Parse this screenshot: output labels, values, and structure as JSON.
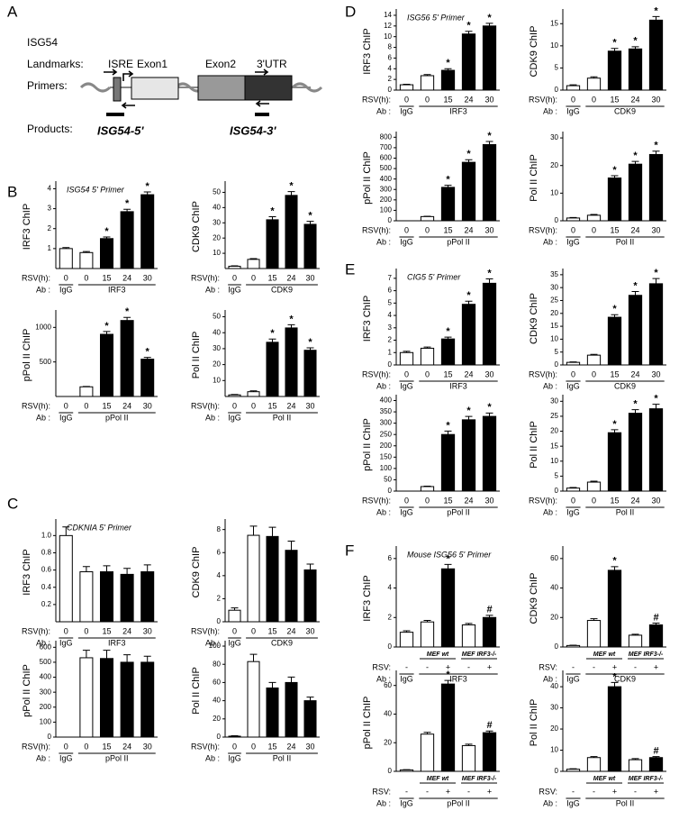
{
  "figure": {
    "panel_labels": [
      "A",
      "B",
      "C",
      "D",
      "E",
      "F"
    ]
  },
  "diagram": {
    "gene": "ISG54",
    "landmarks": "Landmarks:",
    "isre": "ISRE",
    "exon1": "Exon1",
    "exon2": "Exon2",
    "utr": "3'UTR",
    "primers": "Primers:",
    "products": "Products:",
    "product1": "ISG54-5'",
    "product2": "ISG54-3'"
  },
  "chart_data": [
    {
      "type": "bar",
      "title": "ISG54 5' Primer",
      "ylabel": "IRF3 ChIP",
      "row_labels": [
        "RSV(h):",
        "Ab :"
      ],
      "categories": [
        "0",
        "0",
        "15",
        "24",
        "30"
      ],
      "groups": [
        "IgG",
        "IRF3"
      ],
      "values": [
        1.0,
        0.8,
        1.5,
        2.85,
        3.7
      ],
      "errors": [
        0.05,
        0.05,
        0.08,
        0.12,
        0.14
      ],
      "annotations": [
        null,
        null,
        "*",
        "*",
        "*"
      ],
      "colors": [
        "#ffffff",
        "#ffffff",
        "#000000",
        "#000000",
        "#000000"
      ],
      "ylim": [
        0,
        4.2
      ],
      "yticks": [
        1,
        2,
        3,
        4
      ]
    },
    {
      "type": "bar",
      "ylabel": "CDK9 ChIP",
      "row_labels": [
        "RSV(h):",
        "Ab :"
      ],
      "categories": [
        "0",
        "0",
        "15",
        "24",
        "30"
      ],
      "groups": [
        "IgG",
        "CDK9"
      ],
      "values": [
        1.5,
        6,
        32,
        48,
        29
      ],
      "errors": [
        0.3,
        0.5,
        2,
        2.5,
        2
      ],
      "annotations": [
        null,
        null,
        "*",
        "*",
        "*"
      ],
      "colors": [
        "#ffffff",
        "#ffffff",
        "#000000",
        "#000000",
        "#000000"
      ],
      "ylim": [
        0,
        55
      ],
      "yticks": [
        10,
        20,
        30,
        40,
        50
      ]
    },
    {
      "type": "bar",
      "ylabel": "pPol II ChIP",
      "row_labels": [
        "RSV(h):",
        "Ab :"
      ],
      "categories": [
        "0",
        "0",
        "15",
        "24",
        "30"
      ],
      "groups": [
        "IgG",
        "pPol II"
      ],
      "values": [
        0,
        140,
        900,
        1100,
        540
      ],
      "errors": [
        0,
        5,
        40,
        45,
        25
      ],
      "annotations": [
        null,
        null,
        "*",
        "*",
        "*"
      ],
      "colors": [
        "#ffffff",
        "#ffffff",
        "#000000",
        "#000000",
        "#000000"
      ],
      "ylim": [
        0,
        1200
      ],
      "yticks": [
        500,
        1000
      ]
    },
    {
      "type": "bar",
      "ylabel": "Pol II ChIP",
      "row_labels": [
        "RSV(h):",
        "Ab :"
      ],
      "categories": [
        "0",
        "0",
        "15",
        "24",
        "30"
      ],
      "groups": [
        "IgG",
        "Pol II"
      ],
      "values": [
        1,
        3,
        34,
        43,
        29
      ],
      "errors": [
        0.3,
        0.5,
        2,
        2,
        1.5
      ],
      "annotations": [
        null,
        null,
        "*",
        "*",
        "*"
      ],
      "colors": [
        "#ffffff",
        "#ffffff",
        "#000000",
        "#000000",
        "#000000"
      ],
      "ylim": [
        0,
        52
      ],
      "yticks": [
        10,
        20,
        30,
        40,
        50
      ]
    },
    {
      "type": "bar",
      "title": "CDKNIA 5' Primer",
      "ylabel": "IRF3 ChIP",
      "row_labels": [
        "RSV(h):",
        "Ab :"
      ],
      "categories": [
        "0",
        "0",
        "15",
        "24",
        "30"
      ],
      "groups": [
        "IgG",
        "IRF3"
      ],
      "values": [
        1.0,
        0.58,
        0.58,
        0.55,
        0.58
      ],
      "errors": [
        0.1,
        0.06,
        0.07,
        0.07,
        0.08
      ],
      "annotations": [
        null,
        null,
        null,
        null,
        null
      ],
      "colors": [
        "#ffffff",
        "#ffffff",
        "#000000",
        "#000000",
        "#000000"
      ],
      "ylim": [
        0,
        1.15
      ],
      "yticks": [
        0.2,
        0.4,
        0.6,
        0.8,
        {
          "value": 1,
          "label": "1.0"
        }
      ]
    },
    {
      "type": "bar",
      "ylabel": "CDK9 ChIP",
      "row_labels": [
        "RSV(h):",
        "Ab :"
      ],
      "categories": [
        "0",
        "0",
        "15",
        "24",
        "30"
      ],
      "groups": [
        "IgG",
        "CDK9"
      ],
      "values": [
        1.0,
        7.5,
        7.4,
        6.2,
        4.5
      ],
      "errors": [
        0.2,
        0.8,
        0.8,
        0.8,
        0.5
      ],
      "annotations": [
        null,
        null,
        null,
        null,
        null
      ],
      "colors": [
        "#ffffff",
        "#ffffff",
        "#000000",
        "#000000",
        "#000000"
      ],
      "ylim": [
        0,
        8.6
      ],
      "yticks": [
        0,
        2,
        4,
        6,
        8
      ]
    },
    {
      "type": "bar",
      "ylabel": "pPol II ChIP",
      "row_labels": [
        "RSV(h):",
        "Ab :"
      ],
      "categories": [
        "0",
        "0",
        "15",
        "24",
        "30"
      ],
      "groups": [
        "IgG",
        "pPol II"
      ],
      "values": [
        0,
        530,
        525,
        500,
        500
      ],
      "errors": [
        0,
        50,
        55,
        50,
        40
      ],
      "annotations": [
        null,
        null,
        null,
        null,
        null
      ],
      "colors": [
        "#ffffff",
        "#ffffff",
        "#000000",
        "#000000",
        "#000000"
      ],
      "ylim": [
        0,
        620
      ],
      "yticks": [
        0,
        100,
        200,
        300,
        400,
        500,
        600
      ]
    },
    {
      "type": "bar",
      "ylabel": "Pol II ChIP",
      "row_labels": [
        "RSV(h):",
        "Ab :"
      ],
      "categories": [
        "0",
        "0",
        "15",
        "24",
        "30"
      ],
      "groups": [
        "IgG",
        "Pol II"
      ],
      "values": [
        1,
        83,
        54,
        60,
        40
      ],
      "errors": [
        0.5,
        8,
        6,
        6,
        4
      ],
      "annotations": [
        null,
        null,
        null,
        null,
        null
      ],
      "colors": [
        "#ffffff",
        "#ffffff",
        "#000000",
        "#000000",
        "#000000"
      ],
      "ylim": [
        0,
        102
      ],
      "yticks": [
        0,
        20,
        40,
        60,
        80,
        100
      ]
    },
    {
      "type": "bar",
      "title": "ISG56 5' Primer",
      "ylabel": "IRF3 ChIP",
      "row_labels": [
        "RSV(h):",
        "Ab :"
      ],
      "categories": [
        "0",
        "0",
        "15",
        "24",
        "30"
      ],
      "groups": [
        "IgG",
        "IRF3"
      ],
      "values": [
        1,
        2.7,
        3.7,
        10.5,
        12
      ],
      "errors": [
        0.1,
        0.2,
        0.3,
        0.5,
        0.5
      ],
      "annotations": [
        null,
        null,
        "*",
        "*",
        "*"
      ],
      "colors": [
        "#ffffff",
        "#ffffff",
        "#000000",
        "#000000",
        "#000000"
      ],
      "ylim": [
        0,
        14.5
      ],
      "yticks": [
        0,
        2,
        4,
        6,
        8,
        10,
        12,
        14
      ]
    },
    {
      "type": "bar",
      "ylabel": "CDK9 ChIP",
      "row_labels": [
        "RSV(h):",
        "Ab :"
      ],
      "categories": [
        "0",
        "0",
        "15",
        "24",
        "30"
      ],
      "groups": [
        "IgG",
        "CDK9"
      ],
      "values": [
        1,
        2.7,
        8.8,
        9.3,
        15.8
      ],
      "errors": [
        0.2,
        0.3,
        0.6,
        0.5,
        0.8
      ],
      "annotations": [
        null,
        null,
        "*",
        "*",
        "*"
      ],
      "colors": [
        "#ffffff",
        "#ffffff",
        "#000000",
        "#000000",
        "#000000"
      ],
      "ylim": [
        0,
        17.5
      ],
      "yticks": [
        0,
        5,
        10,
        15
      ]
    },
    {
      "type": "bar",
      "ylabel": "pPol II ChIP",
      "row_labels": [
        "RSV(h):",
        "Ab :"
      ],
      "categories": [
        "0",
        "0",
        "15",
        "24",
        "30"
      ],
      "groups": [
        "IgG",
        "pPol II"
      ],
      "values": [
        0,
        40,
        320,
        560,
        730
      ],
      "errors": [
        0,
        3,
        20,
        25,
        30
      ],
      "annotations": [
        null,
        null,
        "*",
        "*",
        "*"
      ],
      "colors": [
        "#ffffff",
        "#ffffff",
        "#000000",
        "#000000",
        "#000000"
      ],
      "ylim": [
        0,
        820
      ],
      "yticks": [
        0,
        100,
        200,
        300,
        400,
        500,
        600,
        700,
        800
      ]
    },
    {
      "type": "bar",
      "ylabel": "Pol II ChIP",
      "row_labels": [
        "RSV(h):",
        "Ab :"
      ],
      "categories": [
        "0",
        "0",
        "15",
        "24",
        "30"
      ],
      "groups": [
        "IgG",
        "Pol II"
      ],
      "values": [
        1,
        2,
        15.5,
        20.5,
        24
      ],
      "errors": [
        0.2,
        0.3,
        0.8,
        1,
        1.2
      ],
      "annotations": [
        null,
        null,
        "*",
        "*",
        "*"
      ],
      "colors": [
        "#ffffff",
        "#ffffff",
        "#000000",
        "#000000",
        "#000000"
      ],
      "ylim": [
        0,
        31
      ],
      "yticks": [
        0,
        10,
        20,
        30
      ]
    },
    {
      "type": "bar",
      "title": "CIG5 5' Primer",
      "ylabel": "IRF3 ChIP",
      "row_labels": [
        "RSV(h):",
        "Ab :"
      ],
      "categories": [
        "0",
        "0",
        "15",
        "24",
        "30"
      ],
      "groups": [
        "IgG",
        "IRF3"
      ],
      "values": [
        1,
        1.35,
        2.1,
        4.9,
        6.6
      ],
      "errors": [
        0.1,
        0.1,
        0.15,
        0.25,
        0.35
      ],
      "annotations": [
        null,
        null,
        "*",
        "*",
        "*"
      ],
      "colors": [
        "#ffffff",
        "#ffffff",
        "#000000",
        "#000000",
        "#000000"
      ],
      "ylim": [
        0,
        7.5
      ],
      "yticks": [
        0,
        1,
        2,
        3,
        4,
        5,
        6,
        7
      ]
    },
    {
      "type": "bar",
      "ylabel": "CDK9 ChIP",
      "row_labels": [
        "RSV(h):",
        "Ab :"
      ],
      "categories": [
        "0",
        "0",
        "15",
        "24",
        "30"
      ],
      "groups": [
        "IgG",
        "CDK9"
      ],
      "values": [
        1,
        3.8,
        18.5,
        27,
        31.5
      ],
      "errors": [
        0.2,
        0.3,
        1,
        1.5,
        2
      ],
      "annotations": [
        null,
        null,
        "*",
        "*",
        "*"
      ],
      "colors": [
        "#ffffff",
        "#ffffff",
        "#000000",
        "#000000",
        "#000000"
      ],
      "ylim": [
        0,
        36
      ],
      "yticks": [
        0,
        5,
        10,
        15,
        20,
        25,
        30,
        35
      ]
    },
    {
      "type": "bar",
      "ylabel": "pPol II ChIP",
      "row_labels": [
        "RSV(h):",
        "Ab :"
      ],
      "categories": [
        "0",
        "0",
        "15",
        "24",
        "30"
      ],
      "groups": [
        "IgG",
        "pPol II"
      ],
      "values": [
        0,
        20,
        250,
        315,
        330
      ],
      "errors": [
        0,
        2,
        15,
        15,
        15
      ],
      "annotations": [
        null,
        null,
        "*",
        "*",
        "*"
      ],
      "colors": [
        "#ffffff",
        "#ffffff",
        "#000000",
        "#000000",
        "#000000"
      ],
      "ylim": [
        0,
        410
      ],
      "yticks": [
        0,
        50,
        100,
        150,
        200,
        250,
        300,
        350,
        400
      ]
    },
    {
      "type": "bar",
      "ylabel": "Pol II ChIP",
      "row_labels": [
        "RSV(h):",
        "Ab :"
      ],
      "categories": [
        "0",
        "0",
        "15",
        "24",
        "30"
      ],
      "groups": [
        "IgG",
        "Pol II"
      ],
      "values": [
        1,
        3,
        19.5,
        26,
        27.5
      ],
      "errors": [
        0.2,
        0.3,
        1,
        1.2,
        1.5
      ],
      "annotations": [
        null,
        null,
        "*",
        "*",
        "*"
      ],
      "colors": [
        "#ffffff",
        "#ffffff",
        "#000000",
        "#000000",
        "#000000"
      ],
      "ylim": [
        0,
        31
      ],
      "yticks": [
        0,
        5,
        10,
        15,
        20,
        25,
        30
      ]
    },
    {
      "type": "bar",
      "title": "Mouse ISG56 5' Primer",
      "ylabel": "IRF3 ChIP",
      "row_labels": [
        "RSV:",
        "Ab :"
      ],
      "categories": [
        "-",
        "-",
        "+",
        "-",
        "+"
      ],
      "subgroups": [
        "MEF wt",
        "MEF IRF3-/-"
      ],
      "groups": [
        "IgG",
        "IRF3"
      ],
      "values": [
        1,
        1.7,
        5.3,
        1.5,
        2.0
      ],
      "errors": [
        0.1,
        0.1,
        0.3,
        0.1,
        0.15
      ],
      "annotations": [
        null,
        null,
        "*",
        null,
        "#"
      ],
      "colors": [
        "#ffffff",
        "#ffffff",
        "#000000",
        "#ffffff",
        "#000000"
      ],
      "ylim": [
        0,
        6.6
      ],
      "yticks": [
        0,
        2,
        4,
        6
      ]
    },
    {
      "type": "bar",
      "ylabel": "CDK9 ChIP",
      "row_labels": [
        "RSV:",
        "Ab :"
      ],
      "categories": [
        "-",
        "-",
        "+",
        "-",
        "+"
      ],
      "subgroups": [
        "MEF wt",
        "MEF IRF3-/-"
      ],
      "groups": [
        "IgG",
        "CDK9"
      ],
      "values": [
        1,
        18,
        52,
        8,
        15
      ],
      "errors": [
        0.2,
        1.2,
        2.5,
        0.6,
        1.2
      ],
      "annotations": [
        null,
        null,
        "*",
        null,
        "#"
      ],
      "colors": [
        "#ffffff",
        "#ffffff",
        "#000000",
        "#ffffff",
        "#000000"
      ],
      "ylim": [
        0,
        66
      ],
      "yticks": [
        0,
        20,
        40,
        60
      ]
    },
    {
      "type": "bar",
      "ylabel": "pPol II ChIP",
      "row_labels": [
        "RSV:",
        "Ab :"
      ],
      "categories": [
        "-",
        "-",
        "+",
        "-",
        "+"
      ],
      "subgroups": [
        "MEF wt",
        "MEF IRF3-/-"
      ],
      "groups": [
        "IgG",
        "pPol II"
      ],
      "values": [
        1,
        26,
        61,
        18,
        27
      ],
      "errors": [
        0.2,
        1.2,
        2.5,
        1,
        1.2
      ],
      "annotations": [
        null,
        null,
        "*",
        null,
        "#"
      ],
      "colors": [
        "#ffffff",
        "#ffffff",
        "#000000",
        "#ffffff",
        "#000000"
      ],
      "ylim": [
        0,
        68
      ],
      "yticks": [
        0,
        20,
        40,
        60
      ]
    },
    {
      "type": "bar",
      "ylabel": "Pol II ChIP",
      "row_labels": [
        "RSV:",
        "Ab :"
      ],
      "categories": [
        "-",
        "-",
        "+",
        "-",
        "+"
      ],
      "subgroups": [
        "MEF wt",
        "MEF IRF3-/-"
      ],
      "groups": [
        "IgG",
        "Pol II"
      ],
      "values": [
        1,
        6.5,
        40,
        5.5,
        6.5
      ],
      "errors": [
        0.2,
        0.5,
        2,
        0.5,
        0.5
      ],
      "annotations": [
        null,
        null,
        "*",
        null,
        "#"
      ],
      "colors": [
        "#ffffff",
        "#ffffff",
        "#000000",
        "#ffffff",
        "#000000"
      ],
      "ylim": [
        0,
        46
      ],
      "yticks": [
        0,
        10,
        20,
        30,
        40
      ]
    }
  ]
}
